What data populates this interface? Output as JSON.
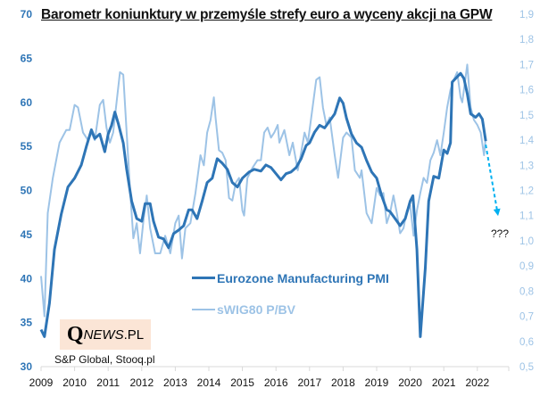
{
  "chart_data": {
    "type": "line",
    "title": "Barometr koniunktury w przemyśle strefy euro a wyceny akcji na GPW",
    "xlabel": "",
    "ylabel_left": "",
    "ylabel_right": "",
    "x_ticks": [
      "2009",
      "2010",
      "2011",
      "2012",
      "2013",
      "2014",
      "2015",
      "2016",
      "2017",
      "2018",
      "2019",
      "2020",
      "2021",
      "2022"
    ],
    "xlim": [
      2009,
      2023.3
    ],
    "ylim_left": [
      30,
      70
    ],
    "ylim_right": [
      0.5,
      1.9
    ],
    "y_ticks_left": [
      "70",
      "65",
      "60",
      "55",
      "50",
      "45",
      "40",
      "35",
      "30"
    ],
    "y_ticks_right": [
      "1,9",
      "1,8",
      "1,7",
      "1,6",
      "1,5",
      "1,4",
      "1,3",
      "1,2",
      "1,1",
      "1,0",
      "0,9",
      "0,8",
      "0,7",
      "0,6",
      "0,5"
    ],
    "grid": false,
    "legend_position": "bottom-center",
    "annotation": "???",
    "source": "S&P Global, Stooq.pl",
    "logo": {
      "q": "Q",
      "rest_italic": "NEWS",
      "rest": ".PL"
    },
    "series": [
      {
        "name": "Eurozone Manufacturing PMI",
        "axis": "left",
        "color": "#2e75b6",
        "x": [
          2009.0,
          2009.1,
          2009.25,
          2009.4,
          2009.6,
          2009.8,
          2010.0,
          2010.2,
          2010.35,
          2010.5,
          2010.6,
          2010.75,
          2010.9,
          2011.0,
          2011.1,
          2011.2,
          2011.3,
          2011.45,
          2011.55,
          2011.7,
          2011.85,
          2012.0,
          2012.1,
          2012.25,
          2012.35,
          2012.5,
          2012.65,
          2012.8,
          2012.95,
          2013.1,
          2013.25,
          2013.4,
          2013.5,
          2013.65,
          2013.8,
          2013.95,
          2014.1,
          2014.25,
          2014.4,
          2014.55,
          2014.7,
          2014.85,
          2015.0,
          2015.2,
          2015.35,
          2015.55,
          2015.7,
          2015.85,
          2016.0,
          2016.15,
          2016.3,
          2016.45,
          2016.6,
          2016.75,
          2016.9,
          2017.0,
          2017.15,
          2017.3,
          2017.45,
          2017.6,
          2017.75,
          2017.9,
          2018.0,
          2018.1,
          2018.25,
          2018.4,
          2018.55,
          2018.7,
          2018.85,
          2019.0,
          2019.15,
          2019.3,
          2019.4,
          2019.55,
          2019.7,
          2019.85,
          2020.0,
          2020.08,
          2020.2,
          2020.3,
          2020.45,
          2020.55,
          2020.7,
          2020.85,
          2021.0,
          2021.1,
          2021.2,
          2021.25,
          2021.4,
          2021.5,
          2021.6,
          2021.7,
          2021.8,
          2021.95,
          2022.05,
          2022.15,
          2022.25
        ],
        "values": [
          34.2,
          33.4,
          37.2,
          43.3,
          47.3,
          50.4,
          51.4,
          52.9,
          55.0,
          56.9,
          55.9,
          56.4,
          54.4,
          56.4,
          57.4,
          58.9,
          57.6,
          55.4,
          52.4,
          48.8,
          46.8,
          46.5,
          48.5,
          48.5,
          46.5,
          44.7,
          44.5,
          43.5,
          45.1,
          45.5,
          46.0,
          47.8,
          47.8,
          46.8,
          48.8,
          50.9,
          51.4,
          53.6,
          53.1,
          52.4,
          50.9,
          50.4,
          51.4,
          52.1,
          52.4,
          52.2,
          52.9,
          52.6,
          51.9,
          51.2,
          51.9,
          52.1,
          52.6,
          53.6,
          55.1,
          55.4,
          56.6,
          57.4,
          57.1,
          57.9,
          58.7,
          60.5,
          59.9,
          58.2,
          56.4,
          55.4,
          54.9,
          53.4,
          52.1,
          51.4,
          49.4,
          47.8,
          47.6,
          46.8,
          46.0,
          46.8,
          48.8,
          49.4,
          43.3,
          33.4,
          41.2,
          48.8,
          51.6,
          51.4,
          54.6,
          54.2,
          55.4,
          62.3,
          62.9,
          63.3,
          62.7,
          61.0,
          58.7,
          58.3,
          58.7,
          58.1,
          55.6
        ]
      },
      {
        "name": "sWIG80 P/BV",
        "axis": "right",
        "color": "#9dc3e6",
        "x": [
          2009.0,
          2009.1,
          2009.2,
          2009.35,
          2009.55,
          2009.75,
          2009.85,
          2010.0,
          2010.1,
          2010.25,
          2010.4,
          2010.5,
          2010.6,
          2010.75,
          2010.85,
          2010.95,
          2011.05,
          2011.15,
          2011.25,
          2011.35,
          2011.45,
          2011.55,
          2011.65,
          2011.75,
          2011.85,
          2011.95,
          2012.05,
          2012.15,
          2012.25,
          2012.4,
          2012.55,
          2012.7,
          2012.85,
          2013.0,
          2013.1,
          2013.2,
          2013.3,
          2013.45,
          2013.6,
          2013.75,
          2013.85,
          2013.95,
          2014.05,
          2014.15,
          2014.2,
          2014.3,
          2014.4,
          2014.5,
          2014.6,
          2014.7,
          2014.8,
          2014.9,
          2015.0,
          2015.05,
          2015.15,
          2015.3,
          2015.45,
          2015.55,
          2015.65,
          2015.75,
          2015.85,
          2015.95,
          2016.05,
          2016.1,
          2016.25,
          2016.4,
          2016.5,
          2016.65,
          2016.75,
          2016.85,
          2016.95,
          2017.05,
          2017.2,
          2017.3,
          2017.4,
          2017.5,
          2017.6,
          2017.75,
          2017.85,
          2018.0,
          2018.1,
          2018.25,
          2018.35,
          2018.5,
          2018.55,
          2018.7,
          2018.85,
          2019.0,
          2019.1,
          2019.2,
          2019.3,
          2019.4,
          2019.5,
          2019.6,
          2019.7,
          2019.8,
          2019.9,
          2020.0,
          2020.1,
          2020.2,
          2020.3,
          2020.4,
          2020.5,
          2020.6,
          2020.7,
          2020.8,
          2020.9,
          2021.0,
          2021.1,
          2021.2,
          2021.3,
          2021.4,
          2021.5,
          2021.55,
          2021.7,
          2021.8,
          2021.9,
          2022.0,
          2022.1,
          2022.2,
          2022.25
        ],
        "values": [
          0.86,
          0.7,
          1.11,
          1.25,
          1.39,
          1.44,
          1.44,
          1.54,
          1.53,
          1.43,
          1.4,
          1.43,
          1.4,
          1.54,
          1.56,
          1.45,
          1.39,
          1.43,
          1.55,
          1.67,
          1.66,
          1.43,
          1.21,
          1.01,
          1.07,
          0.95,
          1.08,
          1.18,
          1.05,
          0.95,
          0.95,
          1.02,
          0.95,
          1.07,
          1.1,
          0.93,
          1.05,
          1.07,
          1.19,
          1.34,
          1.3,
          1.43,
          1.48,
          1.57,
          1.49,
          1.36,
          1.35,
          1.32,
          1.17,
          1.16,
          1.23,
          1.25,
          1.12,
          1.1,
          1.25,
          1.29,
          1.32,
          1.32,
          1.43,
          1.45,
          1.41,
          1.43,
          1.46,
          1.39,
          1.44,
          1.34,
          1.39,
          1.28,
          1.35,
          1.43,
          1.39,
          1.49,
          1.64,
          1.65,
          1.53,
          1.46,
          1.49,
          1.34,
          1.25,
          1.41,
          1.43,
          1.41,
          1.28,
          1.25,
          1.28,
          1.11,
          1.07,
          1.21,
          1.18,
          1.19,
          1.07,
          1.11,
          1.18,
          1.11,
          1.03,
          1.05,
          1.12,
          1.14,
          1.02,
          1.12,
          1.19,
          1.25,
          1.23,
          1.32,
          1.35,
          1.4,
          1.34,
          1.43,
          1.53,
          1.6,
          1.64,
          1.67,
          1.57,
          1.55,
          1.7,
          1.53,
          1.48,
          1.46,
          1.43,
          1.34,
          1.41
        ]
      }
    ],
    "forecast_arrow": {
      "from": [
        2022.25,
        55.6
      ],
      "to": [
        2022.6,
        47.5
      ],
      "color": "#00b0f0",
      "style": "dashed"
    }
  }
}
